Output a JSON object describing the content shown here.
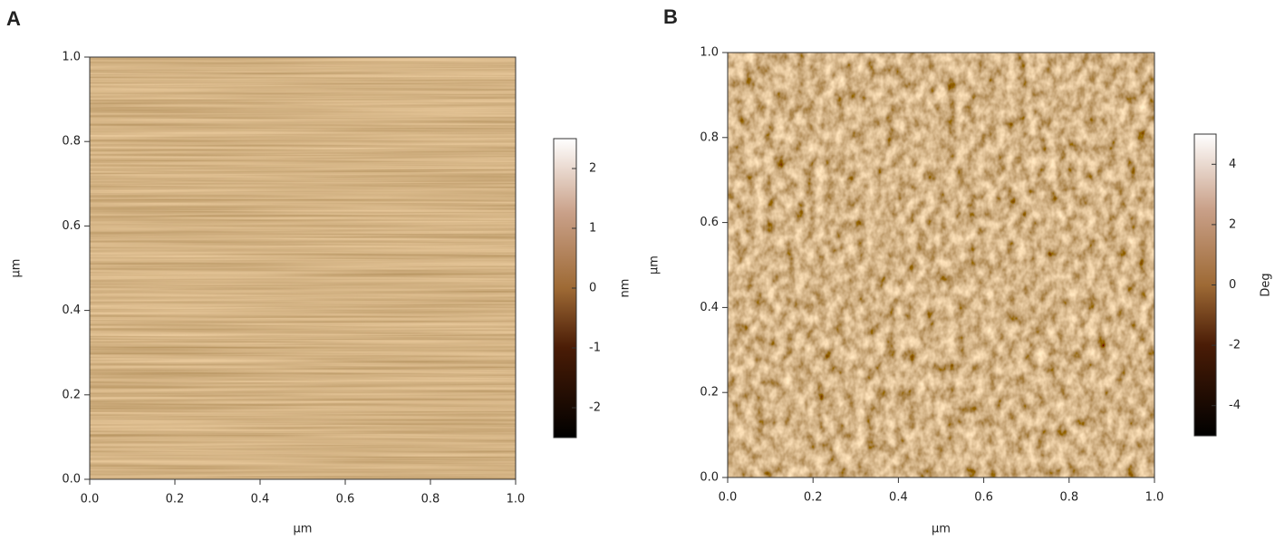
{
  "chart_data": [
    {
      "type": "image",
      "panel": "A",
      "xlabel": "µm",
      "ylabel": "µm",
      "xlim": [
        0,
        1
      ],
      "ylim": [
        0,
        1
      ],
      "xticks": [
        {
          "value": 0,
          "label": "0.0"
        },
        0.2,
        0.4,
        0.6,
        0.8,
        {
          "value": 1,
          "label": "1.0"
        }
      ],
      "yticks": [
        {
          "value": 0,
          "label": "0.0"
        },
        0.2,
        0.4,
        0.6,
        0.8,
        {
          "value": 1,
          "label": "1.0"
        }
      ],
      "colorbar": {
        "label": "nm",
        "lim": [
          -2.5,
          2.5
        ],
        "ticks": [
          -2,
          -1,
          0,
          1,
          2
        ]
      }
    },
    {
      "type": "image",
      "panel": "B",
      "xlabel": "µm",
      "ylabel": "µm",
      "xlim": [
        0,
        1
      ],
      "ylim": [
        0,
        1
      ],
      "xticks": [
        {
          "value": 0,
          "label": "0.0"
        },
        0.2,
        0.4,
        0.6,
        0.8,
        {
          "value": 1,
          "label": "1.0"
        }
      ],
      "yticks": [
        {
          "value": 0,
          "label": "0.0"
        },
        0.2,
        0.4,
        0.6,
        0.8,
        {
          "value": 1,
          "label": "1.0"
        }
      ],
      "colorbar": {
        "label": "Deg",
        "lim": [
          -5,
          5
        ],
        "ticks": [
          -4,
          -2,
          0,
          2,
          4
        ]
      }
    }
  ]
}
